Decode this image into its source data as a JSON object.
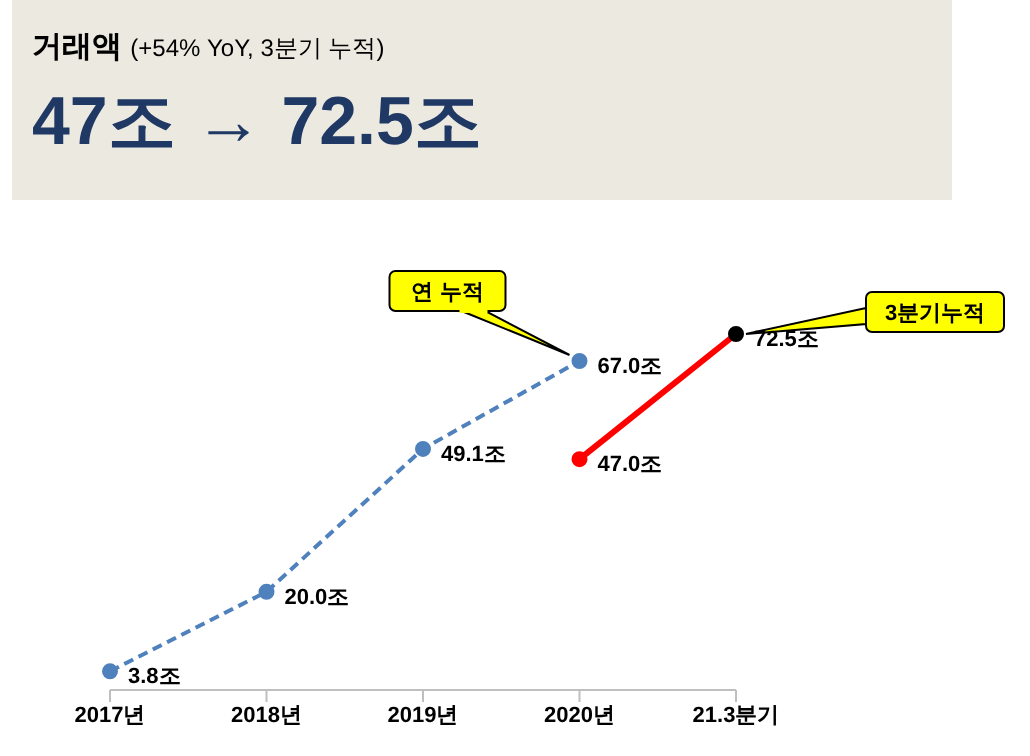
{
  "chart_data": {
    "type": "line",
    "title": "거래액",
    "subtitle": "(+54% YoY, 3분기 누적)",
    "annotations": [
      "47조 → 72.5조",
      {
        "text": "연 누적",
        "x": "2020년",
        "y": 67.0
      },
      {
        "text": "3분기누적",
        "x": "21.3분기",
        "y": 72.5
      }
    ],
    "categories": [
      "2017년",
      "2018년",
      "2019년",
      "2020년",
      "21.3분기"
    ],
    "series": [
      {
        "color": "#4f81bd",
        "line_style": "dashed",
        "values": [
          3.8,
          20.0,
          49.1,
          67.0,
          null
        ],
        "value_labels": [
          "3.8조",
          "20.0조",
          "49.1조",
          "67.0조",
          null
        ]
      },
      {
        "color": "#ff0000",
        "line_style": "solid",
        "values": [
          null,
          null,
          null,
          47.0,
          72.5
        ],
        "colors": [
          null,
          null,
          null,
          "#ff0000",
          "#000000"
        ],
        "value_labels": [
          null,
          null,
          null,
          "47.0조",
          "72.5조"
        ]
      }
    ],
    "marker": "circle",
    "grid": false,
    "legend": false,
    "tick_labels": "x"
  }
}
